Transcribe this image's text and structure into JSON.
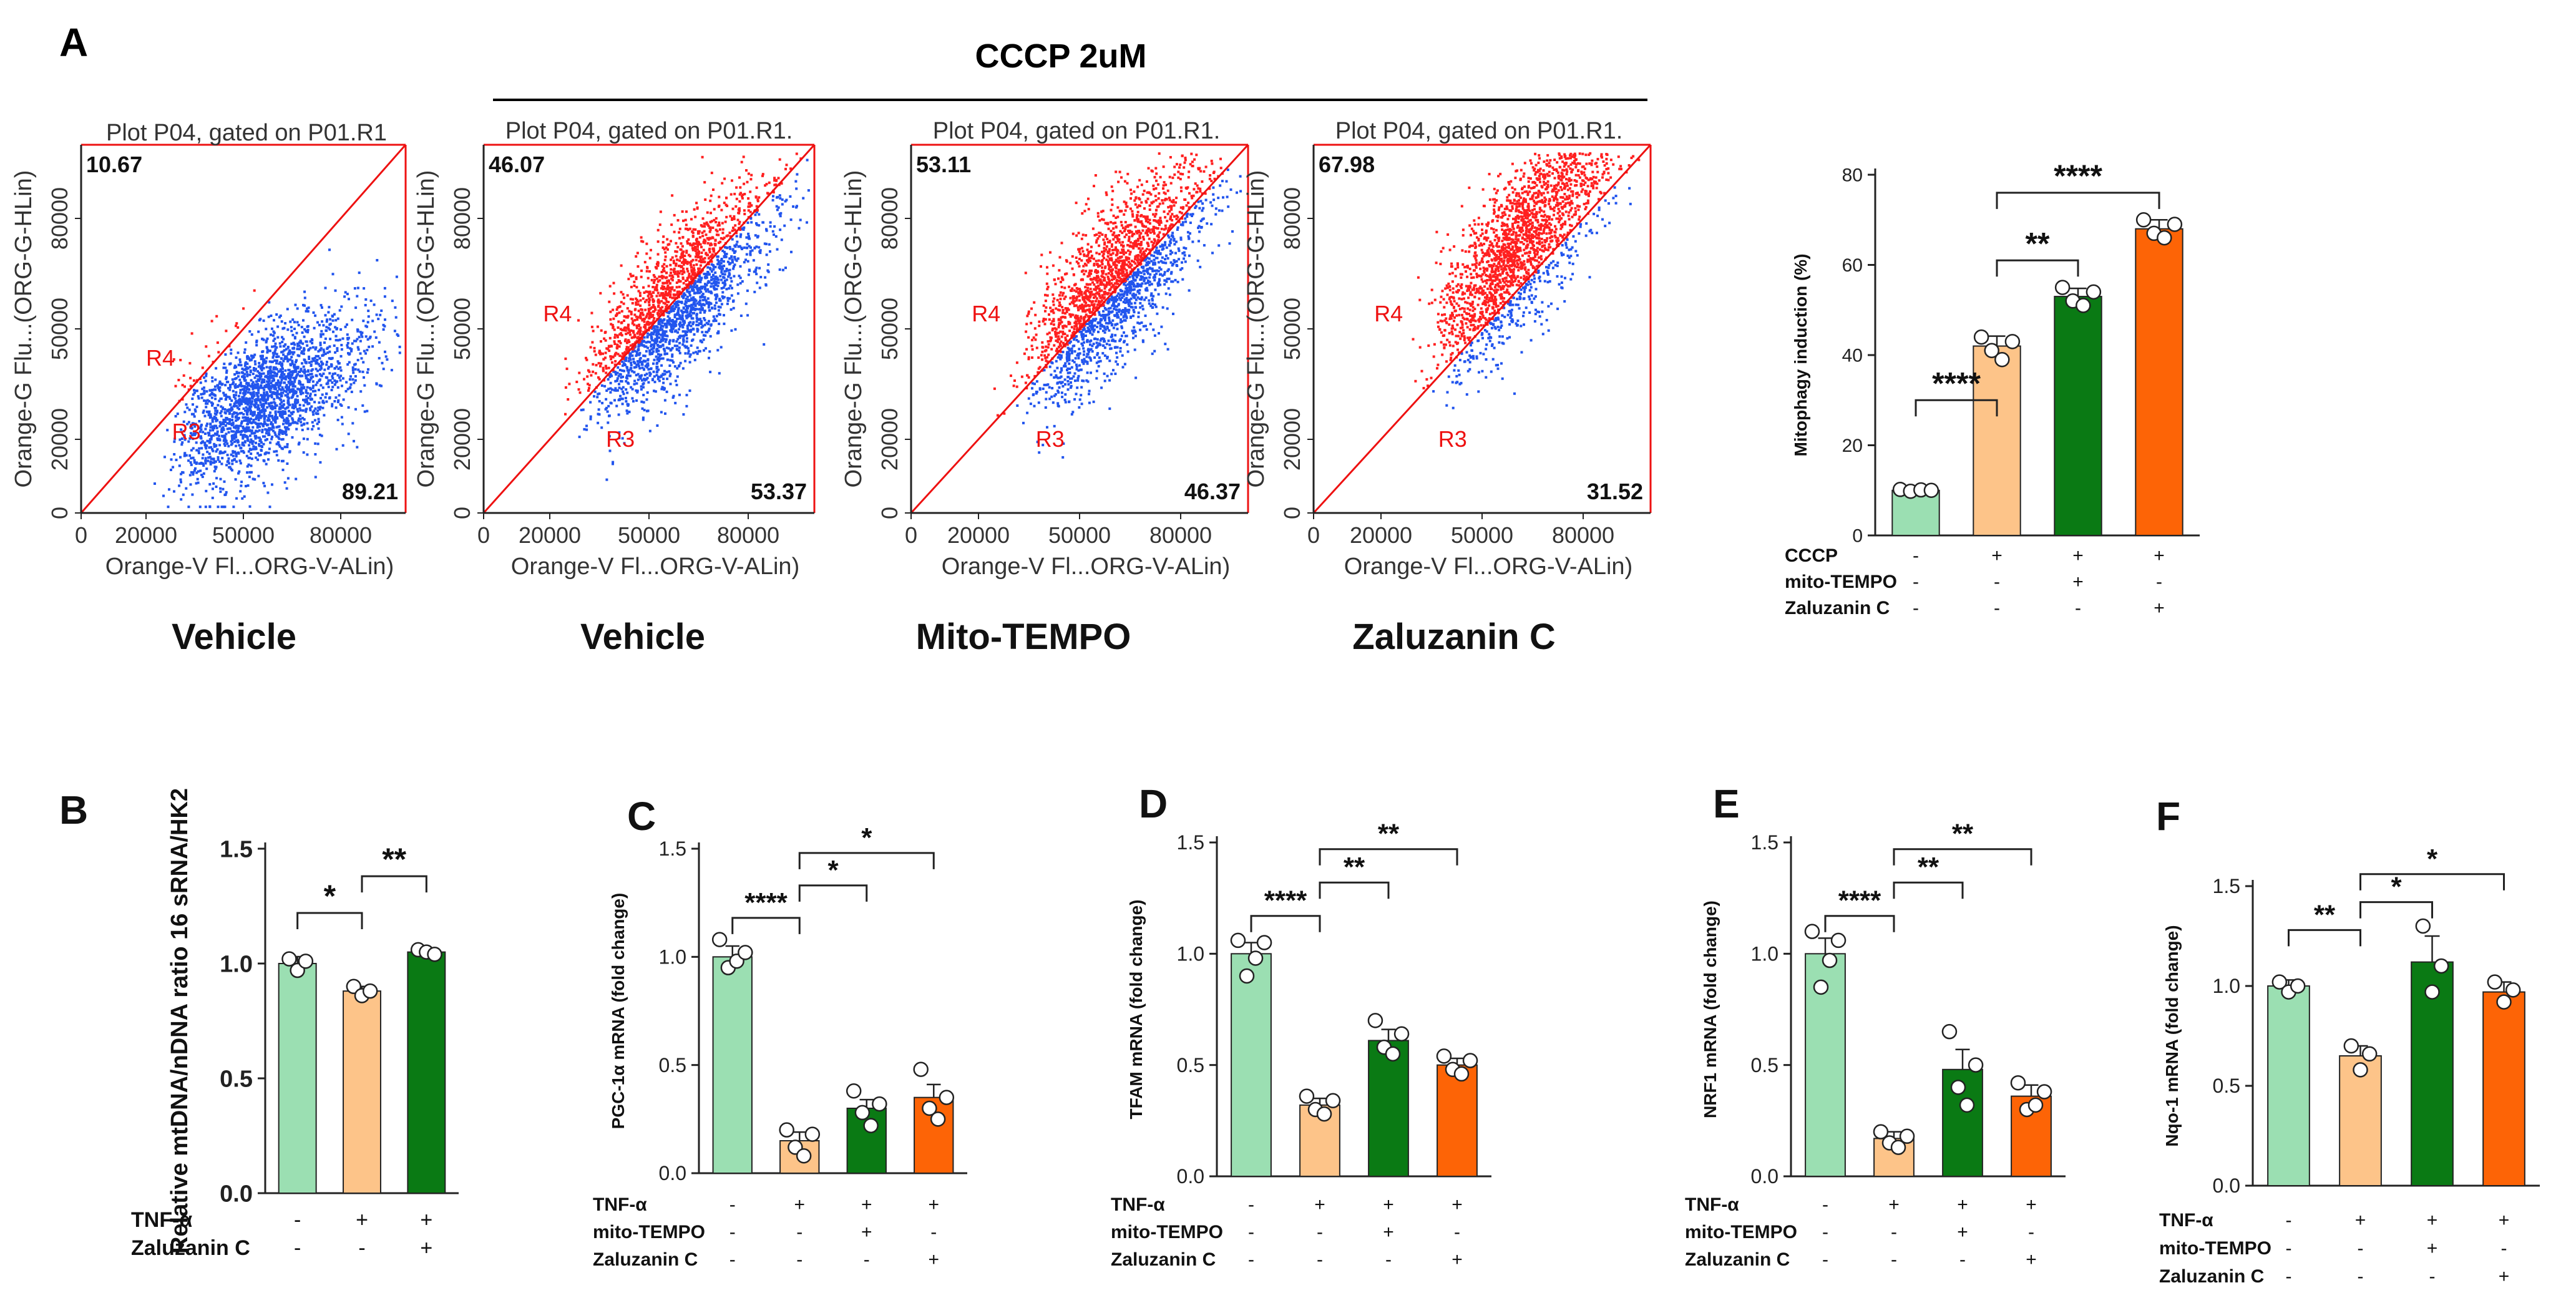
{
  "figure": {
    "panel_a_letter": "A",
    "cccp_header": "CCCP 2uM"
  },
  "chart_data": [
    {
      "id": "A1",
      "type": "scatter",
      "title": "Plot P04, gated on P01.R1",
      "xlabel": "Orange-V Fl...ORG-V-ALin)",
      "ylabel": "Orange-G Flu...(ORG-G-HLin)",
      "xticks": [
        "0",
        "20000",
        "50000",
        "80000"
      ],
      "yticks": [
        "0",
        "20000",
        "50000",
        "80000"
      ],
      "xlim": [
        0,
        100000
      ],
      "ylim": [
        0,
        100000
      ],
      "upper_pct": "10.67",
      "lower_pct": "89.21",
      "r4_label": "R4",
      "r3_label": "R3",
      "condition": "Vehicle",
      "spread": 0.55,
      "center": 30000
    },
    {
      "id": "A2",
      "type": "scatter",
      "title": "Plot P04, gated on P01.R1.",
      "xlabel": "Orange-V Fl...ORG-V-ALin)",
      "ylabel": "Orange-G Flu...(ORG-G-HLin)",
      "xticks": [
        "0",
        "20000",
        "50000",
        "80000"
      ],
      "yticks": [
        "0",
        "20000",
        "50000",
        "80000"
      ],
      "xlim": [
        0,
        100000
      ],
      "ylim": [
        0,
        100000
      ],
      "upper_pct": "46.07",
      "lower_pct": "53.37",
      "r4_label": "R4",
      "r3_label": "R3",
      "condition": "Vehicle",
      "spread": 0.98,
      "center": 32000
    },
    {
      "id": "A3",
      "type": "scatter",
      "title": "Plot P04, gated on P01.R1.",
      "xlabel": "Orange-V Fl...ORG-V-ALin)",
      "ylabel": "Orange-G Flu...(ORG-G-HLin)",
      "xticks": [
        "0",
        "20000",
        "50000",
        "80000"
      ],
      "yticks": [
        "0",
        "20000",
        "50000",
        "80000"
      ],
      "xlim": [
        0,
        100000
      ],
      "ylim": [
        0,
        100000
      ],
      "upper_pct": "53.11",
      "lower_pct": "46.37",
      "r4_label": "R4",
      "r3_label": "R3",
      "condition": "Mito-TEMPO",
      "spread": 1.05,
      "center": 34000
    },
    {
      "id": "A4",
      "type": "scatter",
      "title": "Plot P04, gated on P01.R1.",
      "xlabel": "Orange-V Fl...ORG-V-ALin)",
      "ylabel": "Orange-G Flu...(ORG-G-HLin)",
      "xticks": [
        "0",
        "20000",
        "50000",
        "80000"
      ],
      "yticks": [
        "0",
        "20000",
        "50000",
        "80000"
      ],
      "xlim": [
        0,
        100000
      ],
      "ylim": [
        0,
        100000
      ],
      "upper_pct": "67.98",
      "lower_pct": "31.52",
      "r4_label": "R4",
      "r3_label": "R3",
      "condition": "Zaluzanin C",
      "spread": 1.2,
      "center": 36000
    },
    {
      "id": "A5",
      "type": "bar",
      "ylabel": "Mitophagy induction (%)",
      "ylim": [
        0,
        80
      ],
      "yticks": [
        "0",
        "20",
        "40",
        "60",
        "80"
      ],
      "values": [
        10,
        42,
        53,
        68
      ],
      "errors": [
        0.6,
        2.2,
        1.8,
        2.0
      ],
      "points": [
        [
          10.2,
          9.8,
          10.1,
          10.0
        ],
        [
          44,
          41,
          39,
          43
        ],
        [
          55,
          52,
          51,
          54
        ],
        [
          70,
          67,
          66,
          69
        ]
      ],
      "colors": [
        "#9bdfb2",
        "#fdc489",
        "#0a7a14",
        "#fd6406"
      ],
      "rows": [
        {
          "label": "CCCP",
          "marks": [
            "-",
            "+",
            "+",
            "+"
          ]
        },
        {
          "label": "mito-TEMPO",
          "marks": [
            "-",
            "-",
            "+",
            "-"
          ]
        },
        {
          "label": "Zaluzanin C",
          "marks": [
            "-",
            "-",
            "-",
            "+"
          ]
        }
      ],
      "sig": [
        {
          "from": 0,
          "to": 1,
          "level": 30,
          "label": "****"
        },
        {
          "from": 1,
          "to": 2,
          "level": 61,
          "label": "**"
        },
        {
          "from": 1,
          "to": 3,
          "level": 76,
          "label": "****"
        }
      ]
    },
    {
      "id": "B",
      "type": "bar",
      "letter": "B",
      "ylabel": "Relative mtDNA/nDNA ratio 16 sRNA/HK2",
      "ylim": [
        0,
        1.5
      ],
      "yticks": [
        "0.0",
        "0.5",
        "1.0",
        "1.5"
      ],
      "values": [
        1.0,
        0.88,
        1.05
      ],
      "errors": [
        0.03,
        0.02,
        0.01
      ],
      "points": [
        [
          1.02,
          0.97,
          1.01
        ],
        [
          0.9,
          0.86,
          0.88
        ],
        [
          1.06,
          1.05,
          1.04
        ]
      ],
      "colors": [
        "#9bdfb2",
        "#fdc489",
        "#0a7a14"
      ],
      "rows": [
        {
          "label": "TNF-α",
          "marks": [
            "-",
            "+",
            "+"
          ]
        },
        {
          "label": "Zaluzanin C",
          "marks": [
            "-",
            "-",
            "+"
          ]
        }
      ],
      "sig": [
        {
          "from": 0,
          "to": 1,
          "level": 1.22,
          "label": "*"
        },
        {
          "from": 1,
          "to": 2,
          "level": 1.38,
          "label": "**"
        }
      ]
    },
    {
      "id": "C",
      "type": "bar",
      "letter": "C",
      "ylabel": "PGC-1α mRNA (fold change)",
      "ylim": [
        0,
        1.5
      ],
      "yticks": [
        "0.0",
        "0.5",
        "1.0",
        "1.5"
      ],
      "values": [
        1.0,
        0.15,
        0.3,
        0.35
      ],
      "errors": [
        0.05,
        0.04,
        0.04,
        0.06
      ],
      "points": [
        [
          1.08,
          0.95,
          0.98,
          1.02
        ],
        [
          0.2,
          0.12,
          0.08,
          0.18
        ],
        [
          0.38,
          0.28,
          0.22,
          0.32
        ],
        [
          0.48,
          0.3,
          0.25,
          0.35
        ]
      ],
      "colors": [
        "#9bdfb2",
        "#fdc489",
        "#0a7a14",
        "#fd6406"
      ],
      "rows": [
        {
          "label": "TNF-α",
          "marks": [
            "-",
            "+",
            "+",
            "+"
          ]
        },
        {
          "label": "mito-TEMPO",
          "marks": [
            "-",
            "-",
            "+",
            "-"
          ]
        },
        {
          "label": "Zaluzanin C",
          "marks": [
            "-",
            "-",
            "-",
            "+"
          ]
        }
      ],
      "sig": [
        {
          "from": 0,
          "to": 1,
          "level": 1.18,
          "label": "****"
        },
        {
          "from": 1,
          "to": 2,
          "level": 1.33,
          "label": "*"
        },
        {
          "from": 1,
          "to": 3,
          "level": 1.48,
          "label": "*"
        }
      ]
    },
    {
      "id": "D",
      "type": "bar",
      "letter": "D",
      "ylabel": "TFAM mRNA (fold change)",
      "ylim": [
        0,
        1.5
      ],
      "yticks": [
        "0.0",
        "0.5",
        "1.0",
        "1.5"
      ],
      "values": [
        1.0,
        0.32,
        0.61,
        0.5
      ],
      "errors": [
        0.05,
        0.03,
        0.05,
        0.03
      ],
      "points": [
        [
          1.06,
          0.9,
          0.98,
          1.05
        ],
        [
          0.36,
          0.3,
          0.28,
          0.34
        ],
        [
          0.7,
          0.58,
          0.55,
          0.64
        ],
        [
          0.54,
          0.48,
          0.46,
          0.52
        ]
      ],
      "colors": [
        "#9bdfb2",
        "#fdc489",
        "#0a7a14",
        "#fd6406"
      ],
      "rows": [
        {
          "label": "TNF-α",
          "marks": [
            "-",
            "+",
            "+",
            "+"
          ]
        },
        {
          "label": "mito-TEMPO",
          "marks": [
            "-",
            "-",
            "+",
            "-"
          ]
        },
        {
          "label": "Zaluzanin C",
          "marks": [
            "-",
            "-",
            "-",
            "+"
          ]
        }
      ],
      "sig": [
        {
          "from": 0,
          "to": 1,
          "level": 1.17,
          "label": "****"
        },
        {
          "from": 1,
          "to": 2,
          "level": 1.32,
          "label": "**"
        },
        {
          "from": 1,
          "to": 3,
          "level": 1.47,
          "label": "**"
        }
      ]
    },
    {
      "id": "E",
      "type": "bar",
      "letter": "E",
      "ylabel": "NRF1 mRNA (fold change)",
      "ylim": [
        0,
        1.5
      ],
      "yticks": [
        "0.0",
        "0.5",
        "1.0",
        "1.5"
      ],
      "values": [
        1.0,
        0.17,
        0.48,
        0.36
      ],
      "errors": [
        0.07,
        0.03,
        0.09,
        0.05
      ],
      "points": [
        [
          1.1,
          0.85,
          0.97,
          1.06
        ],
        [
          0.2,
          0.15,
          0.13,
          0.18
        ],
        [
          0.65,
          0.4,
          0.32,
          0.5
        ],
        [
          0.42,
          0.3,
          0.32,
          0.38
        ]
      ],
      "colors": [
        "#9bdfb2",
        "#fdc489",
        "#0a7a14",
        "#fd6406"
      ],
      "rows": [
        {
          "label": "TNF-α",
          "marks": [
            "-",
            "+",
            "+",
            "+"
          ]
        },
        {
          "label": "mito-TEMPO",
          "marks": [
            "-",
            "-",
            "+",
            "-"
          ]
        },
        {
          "label": "Zaluzanin C",
          "marks": [
            "-",
            "-",
            "-",
            "+"
          ]
        }
      ],
      "sig": [
        {
          "from": 0,
          "to": 1,
          "level": 1.17,
          "label": "****"
        },
        {
          "from": 1,
          "to": 2,
          "level": 1.32,
          "label": "**"
        },
        {
          "from": 1,
          "to": 3,
          "level": 1.47,
          "label": "**"
        }
      ]
    },
    {
      "id": "F",
      "type": "bar",
      "letter": "F",
      "ylabel": "Nqo-1 mRNA (fold change)",
      "ylim": [
        0,
        1.5
      ],
      "yticks": [
        "0.0",
        "0.5",
        "1.0",
        "1.5"
      ],
      "values": [
        1.0,
        0.65,
        1.12,
        0.97
      ],
      "errors": [
        0.03,
        0.05,
        0.13,
        0.05
      ],
      "points": [
        [
          1.02,
          0.97,
          1.0
        ],
        [
          0.7,
          0.58,
          0.66
        ],
        [
          1.3,
          0.97,
          1.1
        ],
        [
          1.02,
          0.92,
          0.98
        ]
      ],
      "colors": [
        "#9bdfb2",
        "#fdc489",
        "#0a7a14",
        "#fd6406"
      ],
      "rows": [
        {
          "label": "TNF-α",
          "marks": [
            "-",
            "+",
            "+",
            "+"
          ]
        },
        {
          "label": "mito-TEMPO",
          "marks": [
            "-",
            "-",
            "+",
            "-"
          ]
        },
        {
          "label": "Zaluzanin C",
          "marks": [
            "-",
            "-",
            "-",
            "+"
          ]
        }
      ],
      "sig": [
        {
          "from": 0,
          "to": 1,
          "level": 1.28,
          "label": "**"
        },
        {
          "from": 1,
          "to": 2,
          "level": 1.42,
          "label": "*"
        },
        {
          "from": 1,
          "to": 3,
          "level": 1.56,
          "label": "*"
        }
      ]
    }
  ]
}
